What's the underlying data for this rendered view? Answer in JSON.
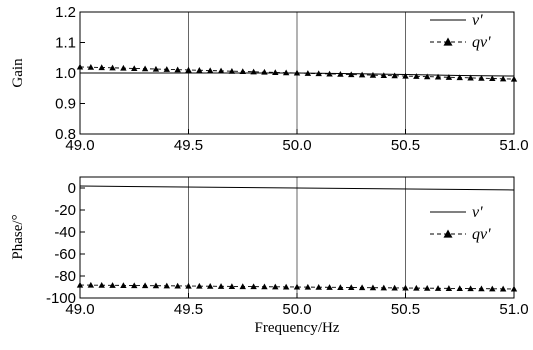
{
  "chart_data": [
    {
      "type": "line",
      "panel": "gain",
      "ylabel": "Gain",
      "xlabel": "",
      "xlim": [
        49.0,
        51.0
      ],
      "ylim": [
        0.8,
        1.2
      ],
      "xticks": [
        "49.0",
        "49.5",
        "50.0",
        "50.5",
        "51.0"
      ],
      "yticks": [
        "0.8",
        "0.9",
        "1.0",
        "1.1",
        "1.2"
      ],
      "vgrid": [
        49.5,
        50.0,
        50.5
      ],
      "legend_position": "top-right",
      "series": [
        {
          "name": "v'",
          "style": "solid",
          "x": [
            49.0,
            49.25,
            49.5,
            49.75,
            50.0,
            50.25,
            50.5,
            50.75,
            51.0
          ],
          "y": [
            1.0,
            1.0,
            1.0,
            1.0,
            1.0,
            0.998,
            0.995,
            0.992,
            0.99
          ]
        },
        {
          "name": "qv'",
          "style": "dashed-triangle",
          "x": [
            49.0,
            49.25,
            49.5,
            49.75,
            50.0,
            50.25,
            50.5,
            50.75,
            51.0
          ],
          "y": [
            1.02,
            1.015,
            1.01,
            1.005,
            1.0,
            0.995,
            0.99,
            0.985,
            0.98
          ]
        }
      ]
    },
    {
      "type": "line",
      "panel": "phase",
      "ylabel": "Phase/°",
      "xlabel": "Frequency/Hz",
      "xlim": [
        49.0,
        51.0
      ],
      "ylim": [
        -100,
        10
      ],
      "xticks": [
        "49.0",
        "49.5",
        "50.0",
        "50.5",
        "51.0"
      ],
      "yticks": [
        "0",
        "-20",
        "-40",
        "-60",
        "-80",
        "-100"
      ],
      "vgrid": [
        49.5,
        50.0,
        50.5
      ],
      "legend_position": "right",
      "series": [
        {
          "name": "v'",
          "style": "solid",
          "x": [
            49.0,
            50.0,
            51.0
          ],
          "y": [
            1.8,
            0.0,
            -1.8
          ]
        },
        {
          "name": "qv'",
          "style": "dashed-triangle",
          "x": [
            49.0,
            50.0,
            51.0
          ],
          "y": [
            -88.2,
            -90.0,
            -91.8
          ]
        }
      ]
    }
  ]
}
